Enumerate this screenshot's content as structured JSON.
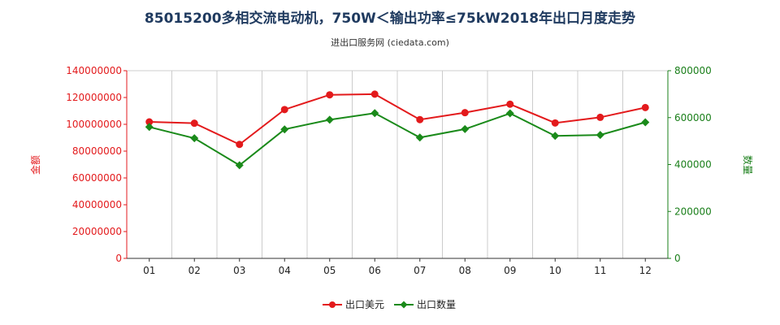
{
  "chart_data": {
    "type": "line",
    "title": "85015200多相交流电动机，750W＜输出功率≤75kW2018年出口月度走势",
    "subtitle": "进出口服务网 (ciedata.com)",
    "categories": [
      "01",
      "02",
      "03",
      "04",
      "05",
      "06",
      "07",
      "08",
      "09",
      "10",
      "11",
      "12"
    ],
    "y_left": {
      "label": "金额",
      "ylim": [
        0,
        140000000
      ],
      "ticks": [
        "0",
        "20000000",
        "40000000",
        "60000000",
        "80000000",
        "100000000",
        "120000000",
        "140000000"
      ],
      "color": "#e31a1c"
    },
    "y_right": {
      "label": "数量",
      "ylim": [
        0,
        800000
      ],
      "ticks": [
        "0",
        "200000",
        "400000",
        "600000",
        "800000"
      ],
      "color": "#1a7f1a"
    },
    "grid": "vertical",
    "legend_position": "bottom",
    "series": [
      {
        "name": "出口美元",
        "axis": "left",
        "color": "#e31a1c",
        "values": [
          101800000,
          100800000,
          85000000,
          111000000,
          122000000,
          122500000,
          103500000,
          108700000,
          115000000,
          101000000,
          105200000,
          112500000
        ]
      },
      {
        "name": "出口数量",
        "axis": "right",
        "color": "#1a8a1a",
        "values": [
          560000,
          512000,
          397000,
          550000,
          591000,
          619000,
          515000,
          551000,
          618000,
          522000,
          526000,
          580000
        ]
      }
    ]
  }
}
